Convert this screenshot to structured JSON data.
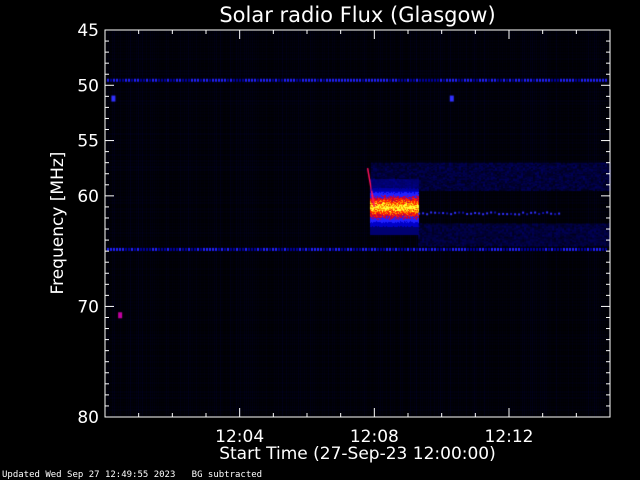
{
  "chart_data": {
    "type": "heatmap",
    "title": "Solar radio Flux (Glasgow)",
    "xlabel": "Start Time (27-Sep-23 12:00:00)",
    "ylabel": "Frequency [MHz]",
    "x_range_minutes": [
      0,
      15
    ],
    "x_tick_labels": [
      "12:04",
      "12:08",
      "12:12"
    ],
    "x_tick_values_minutes": [
      4,
      8,
      12
    ],
    "y_range_mhz": [
      45,
      80
    ],
    "y_reversed": true,
    "y_tick_labels": [
      "45",
      "50",
      "55",
      "60",
      "70",
      "80"
    ],
    "y_tick_values": [
      45,
      50,
      55,
      60,
      70,
      80
    ],
    "colormap": [
      "#000000",
      "#00007f",
      "#0000ff",
      "#ff0000",
      "#ff7f00",
      "#ffff00"
    ],
    "features": [
      {
        "kind": "burst",
        "t_start_min": 7.9,
        "t_end_min": 9.3,
        "f_low_mhz": 58.5,
        "f_high_mhz": 63.5,
        "peak_f_mhz": 61.0
      },
      {
        "kind": "drift_streak",
        "t_start_min": 7.8,
        "t_end_min": 8.0,
        "f_start_mhz": 57.5,
        "f_end_mhz": 61.0
      },
      {
        "kind": "tail",
        "t_start_min": 9.3,
        "t_end_min": 13.5,
        "f_mhz": 61.5
      },
      {
        "kind": "background_band",
        "t_start_min": 7.9,
        "t_end_min": 15,
        "f_low_mhz": 57.0,
        "f_high_mhz": 59.5
      },
      {
        "kind": "background_band",
        "t_start_min": 9.3,
        "t_end_min": 15,
        "f_low_mhz": 62.5,
        "f_high_mhz": 64.5
      },
      {
        "kind": "rfi_line",
        "f_mhz": 49.5
      },
      {
        "kind": "rfi_line",
        "f_mhz": 64.8
      },
      {
        "kind": "spot",
        "t_min": 0.25,
        "f_mhz": 51.2
      },
      {
        "kind": "spot",
        "t_min": 10.3,
        "f_mhz": 51.2
      },
      {
        "kind": "spot",
        "t_min": 0.45,
        "f_mhz": 70.8
      }
    ]
  },
  "footer": {
    "updated": "Updated Wed Sep 27 12:49:55 2023",
    "note": "BG subtracted"
  }
}
